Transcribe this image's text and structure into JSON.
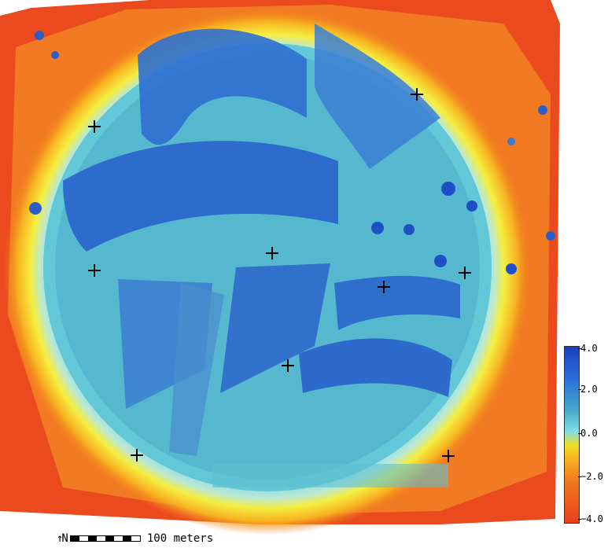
{
  "map": {
    "colors": {
      "high": "#1a3fbf",
      "mid_high": "#2b6fd9",
      "mid": "#45a8c8",
      "zero": "#7ee0e6",
      "low_yellow": "#f0e020",
      "low": "#f07a1e",
      "very_low": "#e8401c"
    },
    "markers": [
      {
        "id": "m1"
      },
      {
        "id": "m2"
      },
      {
        "id": "m3"
      },
      {
        "id": "m4"
      },
      {
        "id": "m5"
      },
      {
        "id": "m6"
      },
      {
        "id": "m7"
      },
      {
        "id": "m8"
      },
      {
        "id": "m9"
      },
      {
        "id": "m10"
      }
    ]
  },
  "colorbar": {
    "ticks": [
      "4.0",
      "2.0",
      "0.0",
      "−2.0",
      "−4.0"
    ]
  },
  "scalebar": {
    "north_symbol": "↑N",
    "label": "100 meters"
  }
}
